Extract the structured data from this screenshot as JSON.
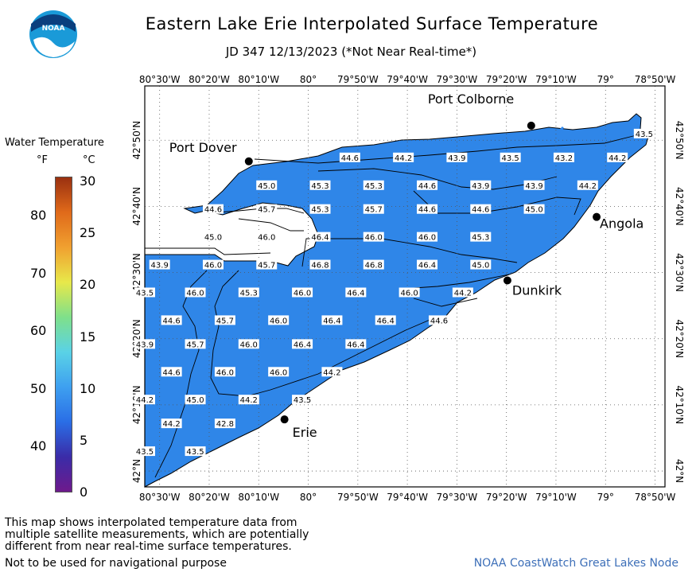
{
  "header": {
    "logo_text": "NOAA",
    "title": "Eastern Lake Erie Interpolated Surface Temperature",
    "subtitle": "JD 347 12/13/2023 (*Not Near Real-time*)"
  },
  "legend": {
    "title": "Water Temperature",
    "unit_f": "°F",
    "unit_c": "°C",
    "f_ticks": [
      "80",
      "70",
      "60",
      "50",
      "40"
    ],
    "c_ticks": [
      "30",
      "25",
      "20",
      "15",
      "10",
      "5",
      "0"
    ],
    "range_c": [
      0,
      30
    ],
    "colors": [
      "#6e1a8c",
      "#3a2ca8",
      "#2a6ee6",
      "#3ea0f0",
      "#5ad2e6",
      "#7fe08a",
      "#e8e84a",
      "#f0a030",
      "#e06a1a",
      "#9a3010"
    ]
  },
  "map": {
    "lon_labels": [
      "80°30'W",
      "80°20'W",
      "80°10'W",
      "80°",
      "79°50'W",
      "79°40'W",
      "79°30'W",
      "79°20'W",
      "79°10'W",
      "79°",
      "78°50'W"
    ],
    "lat_labels": [
      "42°50'N",
      "42°40'N",
      "42°30'N",
      "42°20'N",
      "42°10'N",
      "42°N"
    ],
    "lon_range": [
      -80.55,
      -78.8
    ],
    "lat_range": [
      41.96,
      42.97
    ],
    "grid": true,
    "water_color": "#2f86e8",
    "cities": [
      {
        "name": "Port Colborne",
        "lon": -79.25,
        "lat": 42.87
      },
      {
        "name": "Port Dover",
        "lon": -80.2,
        "lat": 42.78
      },
      {
        "name": "Angola",
        "lon": -79.03,
        "lat": 42.64
      },
      {
        "name": "Dunkirk",
        "lon": -79.33,
        "lat": 42.48
      },
      {
        "name": "Erie",
        "lon": -80.08,
        "lat": 42.13
      }
    ],
    "values": [
      {
        "t": "43.5",
        "lon": -78.87,
        "lat": 42.85
      },
      {
        "t": "44.6",
        "lon": -79.86,
        "lat": 42.79
      },
      {
        "t": "44.2",
        "lon": -79.68,
        "lat": 42.79
      },
      {
        "t": "43.9",
        "lon": -79.5,
        "lat": 42.79
      },
      {
        "t": "43.5",
        "lon": -79.32,
        "lat": 42.79
      },
      {
        "t": "43.2",
        "lon": -79.14,
        "lat": 42.79
      },
      {
        "t": "44.2",
        "lon": -78.96,
        "lat": 42.79
      },
      {
        "t": "45.0",
        "lon": -80.14,
        "lat": 42.72
      },
      {
        "t": "45.3",
        "lon": -79.96,
        "lat": 42.72
      },
      {
        "t": "45.3",
        "lon": -79.78,
        "lat": 42.72
      },
      {
        "t": "44.6",
        "lon": -79.6,
        "lat": 42.72
      },
      {
        "t": "43.9",
        "lon": -79.42,
        "lat": 42.72
      },
      {
        "t": "43.9",
        "lon": -79.24,
        "lat": 42.72
      },
      {
        "t": "44.2",
        "lon": -79.06,
        "lat": 42.72
      },
      {
        "t": "44.6",
        "lon": -80.32,
        "lat": 42.66
      },
      {
        "t": "45.7",
        "lon": -80.14,
        "lat": 42.66
      },
      {
        "t": "45.3",
        "lon": -79.96,
        "lat": 42.66
      },
      {
        "t": "45.7",
        "lon": -79.78,
        "lat": 42.66
      },
      {
        "t": "44.6",
        "lon": -79.6,
        "lat": 42.66
      },
      {
        "t": "44.6",
        "lon": -79.42,
        "lat": 42.66
      },
      {
        "t": "45.0",
        "lon": -79.24,
        "lat": 42.66
      },
      {
        "t": "45.0",
        "lon": -80.32,
        "lat": 42.59
      },
      {
        "t": "46.0",
        "lon": -80.14,
        "lat": 42.59
      },
      {
        "t": "46.4",
        "lon": -79.96,
        "lat": 42.59
      },
      {
        "t": "46.0",
        "lon": -79.78,
        "lat": 42.59
      },
      {
        "t": "46.0",
        "lon": -79.6,
        "lat": 42.59
      },
      {
        "t": "45.3",
        "lon": -79.42,
        "lat": 42.59
      },
      {
        "t": "43.9",
        "lon": -80.5,
        "lat": 42.52
      },
      {
        "t": "46.0",
        "lon": -80.32,
        "lat": 42.52
      },
      {
        "t": "45.7",
        "lon": -80.14,
        "lat": 42.52
      },
      {
        "t": "46.8",
        "lon": -79.96,
        "lat": 42.52
      },
      {
        "t": "46.8",
        "lon": -79.78,
        "lat": 42.52
      },
      {
        "t": "46.4",
        "lon": -79.6,
        "lat": 42.52
      },
      {
        "t": "45.0",
        "lon": -79.42,
        "lat": 42.52
      },
      {
        "t": "43.5",
        "lon": -80.55,
        "lat": 42.45
      },
      {
        "t": "46.0",
        "lon": -80.38,
        "lat": 42.45
      },
      {
        "t": "45.3",
        "lon": -80.2,
        "lat": 42.45
      },
      {
        "t": "46.0",
        "lon": -80.02,
        "lat": 42.45
      },
      {
        "t": "46.4",
        "lon": -79.84,
        "lat": 42.45
      },
      {
        "t": "46.0",
        "lon": -79.66,
        "lat": 42.45
      },
      {
        "t": "44.2",
        "lon": -79.48,
        "lat": 42.45
      },
      {
        "t": "44.6",
        "lon": -80.46,
        "lat": 42.38
      },
      {
        "t": "45.7",
        "lon": -80.28,
        "lat": 42.38
      },
      {
        "t": "46.0",
        "lon": -80.1,
        "lat": 42.38
      },
      {
        "t": "46.4",
        "lon": -79.92,
        "lat": 42.38
      },
      {
        "t": "46.4",
        "lon": -79.74,
        "lat": 42.38
      },
      {
        "t": "44.6",
        "lon": -79.56,
        "lat": 42.38
      },
      {
        "t": "43.9",
        "lon": -80.55,
        "lat": 42.32
      },
      {
        "t": "45.7",
        "lon": -80.38,
        "lat": 42.32
      },
      {
        "t": "46.0",
        "lon": -80.2,
        "lat": 42.32
      },
      {
        "t": "46.4",
        "lon": -80.02,
        "lat": 42.32
      },
      {
        "t": "46.4",
        "lon": -79.84,
        "lat": 42.32
      },
      {
        "t": "44.6",
        "lon": -80.46,
        "lat": 42.25
      },
      {
        "t": "46.0",
        "lon": -80.28,
        "lat": 42.25
      },
      {
        "t": "46.0",
        "lon": -80.1,
        "lat": 42.25
      },
      {
        "t": "44.2",
        "lon": -79.92,
        "lat": 42.25
      },
      {
        "t": "44.2",
        "lon": -80.55,
        "lat": 42.18
      },
      {
        "t": "45.0",
        "lon": -80.38,
        "lat": 42.18
      },
      {
        "t": "44.2",
        "lon": -80.2,
        "lat": 42.18
      },
      {
        "t": "43.5",
        "lon": -80.02,
        "lat": 42.18
      },
      {
        "t": "44.2",
        "lon": -80.46,
        "lat": 42.12
      },
      {
        "t": "42.8",
        "lon": -80.28,
        "lat": 42.12
      },
      {
        "t": "43.5",
        "lon": -80.55,
        "lat": 42.05
      },
      {
        "t": "43.5",
        "lon": -80.38,
        "lat": 42.05
      }
    ]
  },
  "notes": {
    "line1": "This map shows interpolated temperature data from",
    "line2": "multiple satellite measurements, which are potentially",
    "line3": "different from near real-time surface temperatures.",
    "footer_left": "Not to be used for navigational purpose",
    "footer_right": "NOAA CoastWatch Great Lakes Node"
  }
}
